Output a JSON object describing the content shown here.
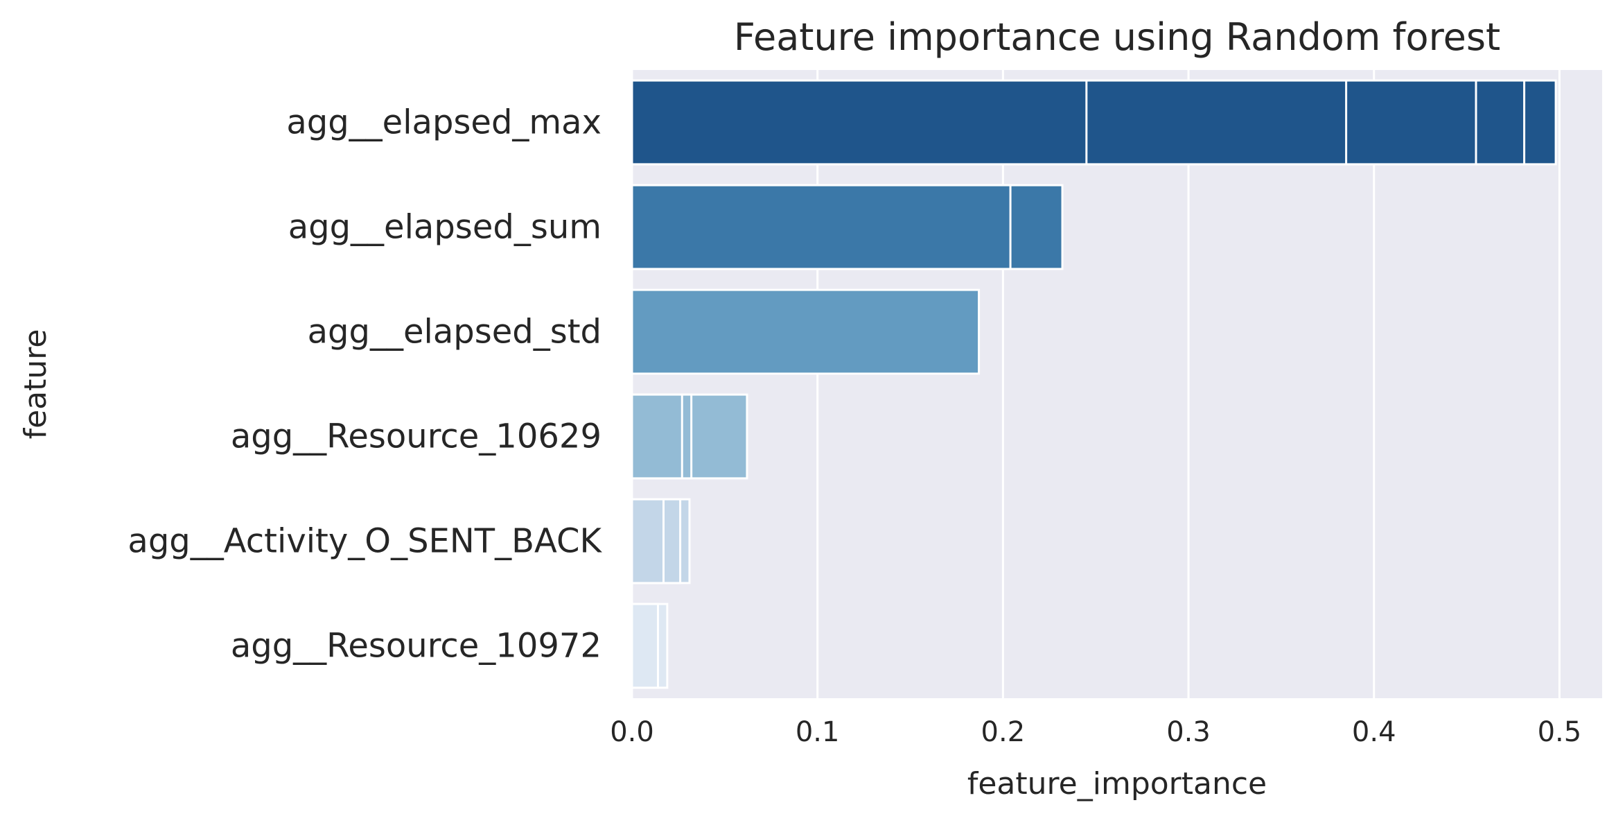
{
  "chart_data": {
    "type": "bar",
    "orientation": "horizontal",
    "title": "Feature importance using Random forest",
    "xlabel": "feature_importance",
    "ylabel": "feature",
    "xlim": [
      0.0,
      0.523
    ],
    "xticks": [
      0.0,
      0.1,
      0.2,
      0.3,
      0.4,
      0.5
    ],
    "xtick_labels": [
      "0.0",
      "0.1",
      "0.2",
      "0.3",
      "0.4",
      "0.5"
    ],
    "grid": true,
    "legend": "none",
    "categories": [
      "agg__elapsed_max",
      "agg__elapsed_sum",
      "agg__elapsed_std",
      "agg__Resource_10629",
      "agg__Activity_O_SENT_BACK",
      "agg__Resource_10972"
    ],
    "values": [
      0.498,
      0.232,
      0.187,
      0.062,
      0.031,
      0.019
    ],
    "segment_breaks": [
      [
        0.245,
        0.385,
        0.455,
        0.481,
        0.498
      ],
      [
        0.204,
        0.232
      ],
      [
        0.187
      ],
      [
        0.027,
        0.032,
        0.062
      ],
      [
        0.017,
        0.026,
        0.031
      ],
      [
        0.014,
        0.019
      ]
    ],
    "colors": [
      "#1f558b",
      "#3b78a8",
      "#639bc1",
      "#93bbd5",
      "#c3d6e8",
      "#dee8f3"
    ],
    "background_color": "#eaeaf2",
    "grid_color": "#ffffff"
  }
}
